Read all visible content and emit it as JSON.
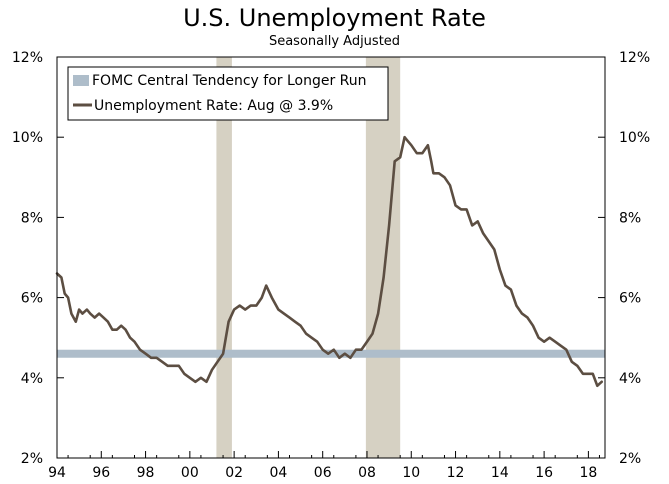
{
  "chart_data": {
    "type": "line",
    "title": "U.S. Unemployment Rate",
    "subtitle": "Seasonally Adjusted",
    "xlabel": "",
    "ylabel": "",
    "xlim": [
      1994.0,
      2018.75
    ],
    "ylim": [
      2,
      12
    ],
    "y_tick_values": [
      2,
      4,
      6,
      8,
      10,
      12
    ],
    "y_tick_labels": [
      "2%",
      "4%",
      "6%",
      "8%",
      "10%",
      "12%"
    ],
    "x_tick_values": [
      1994,
      1996,
      1998,
      2000,
      2002,
      2004,
      2006,
      2008,
      2010,
      2012,
      2014,
      2016,
      2018
    ],
    "x_tick_labels": [
      "94",
      "96",
      "98",
      "00",
      "02",
      "04",
      "06",
      "08",
      "10",
      "12",
      "14",
      "16",
      "18"
    ],
    "legend_position": "top-left",
    "recessions": [
      [
        2001.2,
        2001.9
      ],
      [
        2007.95,
        2009.5
      ]
    ],
    "band": {
      "name": "FOMC Central Tendency for Longer Run",
      "low": 4.5,
      "high": 4.7,
      "color": "#aebdca"
    },
    "series": [
      {
        "name": "Unemployment Rate: Aug @ 3.9%",
        "color": "#5c4e42",
        "x": [
          1994.0,
          1994.2,
          1994.35,
          1994.5,
          1994.65,
          1994.85,
          1995.0,
          1995.15,
          1995.35,
          1995.5,
          1995.7,
          1995.9,
          1996.1,
          1996.3,
          1996.5,
          1996.7,
          1996.9,
          1997.1,
          1997.3,
          1997.5,
          1997.75,
          1998.0,
          1998.25,
          1998.5,
          1998.75,
          1999.0,
          1999.25,
          1999.5,
          1999.75,
          2000.0,
          2000.25,
          2000.5,
          2000.75,
          2001.0,
          2001.25,
          2001.5,
          2001.75,
          2002.0,
          2002.25,
          2002.5,
          2002.75,
          2003.0,
          2003.25,
          2003.45,
          2003.7,
          2004.0,
          2004.25,
          2004.5,
          2004.75,
          2005.0,
          2005.25,
          2005.5,
          2005.75,
          2006.0,
          2006.25,
          2006.5,
          2006.75,
          2007.0,
          2007.25,
          2007.5,
          2007.75,
          2008.0,
          2008.25,
          2008.5,
          2008.75,
          2009.0,
          2009.25,
          2009.5,
          2009.7,
          2009.85,
          2010.0,
          2010.25,
          2010.5,
          2010.75,
          2010.9,
          2011.0,
          2011.25,
          2011.5,
          2011.75,
          2012.0,
          2012.25,
          2012.5,
          2012.75,
          2013.0,
          2013.25,
          2013.5,
          2013.75,
          2014.0,
          2014.25,
          2014.5,
          2014.75,
          2015.0,
          2015.25,
          2015.5,
          2015.75,
          2016.0,
          2016.25,
          2016.5,
          2016.75,
          2017.0,
          2017.25,
          2017.5,
          2017.75,
          2018.0,
          2018.2,
          2018.4,
          2018.6
        ],
        "values": [
          6.6,
          6.5,
          6.1,
          6.0,
          5.6,
          5.4,
          5.7,
          5.6,
          5.7,
          5.6,
          5.5,
          5.6,
          5.5,
          5.4,
          5.2,
          5.2,
          5.3,
          5.2,
          5.0,
          4.9,
          4.7,
          4.6,
          4.5,
          4.5,
          4.4,
          4.3,
          4.3,
          4.3,
          4.1,
          4.0,
          3.9,
          4.0,
          3.9,
          4.2,
          4.4,
          4.6,
          5.4,
          5.7,
          5.8,
          5.7,
          5.8,
          5.8,
          6.0,
          6.3,
          6.0,
          5.7,
          5.6,
          5.5,
          5.4,
          5.3,
          5.1,
          5.0,
          4.9,
          4.7,
          4.6,
          4.7,
          4.5,
          4.6,
          4.5,
          4.7,
          4.7,
          4.9,
          5.1,
          5.6,
          6.5,
          7.8,
          9.4,
          9.5,
          10.0,
          9.9,
          9.8,
          9.6,
          9.6,
          9.8,
          9.4,
          9.1,
          9.1,
          9.0,
          8.8,
          8.3,
          8.2,
          8.2,
          7.8,
          7.9,
          7.6,
          7.4,
          7.2,
          6.7,
          6.3,
          6.2,
          5.8,
          5.6,
          5.5,
          5.3,
          5.0,
          4.9,
          5.0,
          4.9,
          4.8,
          4.7,
          4.4,
          4.3,
          4.1,
          4.1,
          4.1,
          3.8,
          3.9
        ]
      }
    ]
  }
}
